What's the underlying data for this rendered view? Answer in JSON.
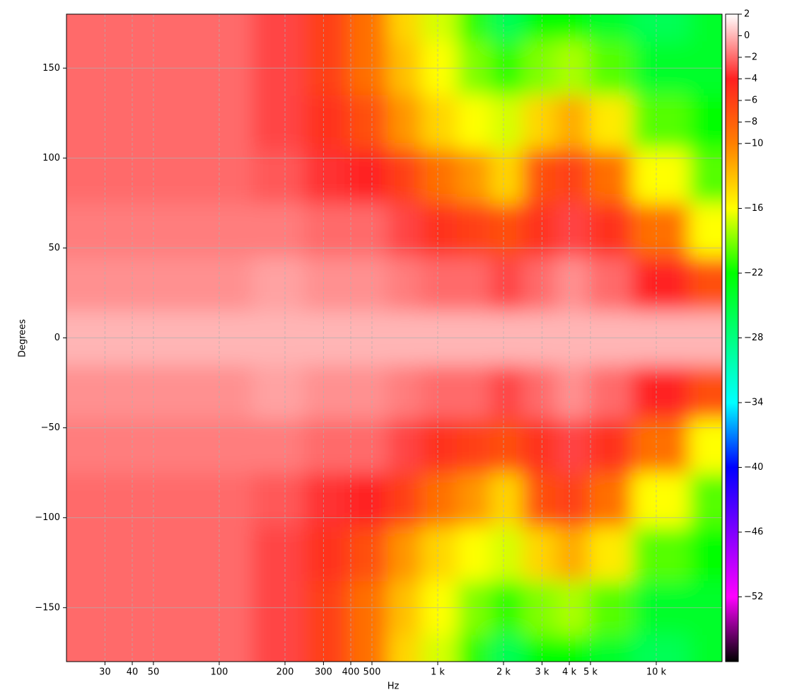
{
  "chart_data": {
    "type": "heatmap",
    "xlabel": "Hz",
    "ylabel": "Degrees",
    "x": [
      20,
      50,
      100,
      200,
      300,
      500,
      700,
      1000,
      1500,
      2000,
      3000,
      4000,
      6000,
      10000,
      20000
    ],
    "y": [
      -180,
      -150,
      -120,
      -90,
      -60,
      -30,
      0,
      30,
      60,
      90,
      120,
      150,
      180
    ],
    "values": [
      [
        -2,
        -2,
        -2,
        -3,
        -6,
        -9,
        -14,
        -17,
        -21,
        -26,
        -22,
        -22,
        -24,
        -26,
        -24
      ],
      [
        -2,
        -2,
        -2,
        -3,
        -6,
        -9,
        -13,
        -16,
        -19,
        -21,
        -19,
        -18,
        -20,
        -24,
        -24
      ],
      [
        -2,
        -2,
        -2,
        -3,
        -5,
        -7,
        -11,
        -14,
        -16,
        -17,
        -14,
        -12,
        -15,
        -20,
        -22
      ],
      [
        -2,
        -2,
        -2,
        -2.5,
        -3.5,
        -4,
        -6,
        -9,
        -11,
        -14,
        -7,
        -6,
        -9,
        -16,
        -20
      ],
      [
        -1.5,
        -1.5,
        -1.5,
        -1.5,
        -2,
        -2,
        -3,
        -5,
        -6,
        -7,
        -5,
        -3,
        -5,
        -9,
        -16
      ],
      [
        -1,
        -1,
        -1,
        -0.5,
        -1,
        -1,
        -1.5,
        -2,
        -2,
        -3,
        -2,
        -1,
        -2,
        -4,
        -7
      ],
      [
        0,
        0,
        0,
        0,
        0,
        0,
        0,
        0,
        0,
        0,
        0,
        0,
        0,
        0,
        0
      ],
      [
        -1,
        -1,
        -1,
        -0.5,
        -1,
        -1,
        -1.5,
        -2,
        -2,
        -3,
        -2,
        -1,
        -2,
        -4,
        -7
      ],
      [
        -1.5,
        -1.5,
        -1.5,
        -1.5,
        -2,
        -2,
        -3,
        -5,
        -6,
        -7,
        -5,
        -3,
        -5,
        -9,
        -16
      ],
      [
        -2,
        -2,
        -2,
        -2.5,
        -3.5,
        -4,
        -6,
        -9,
        -11,
        -14,
        -7,
        -6,
        -9,
        -16,
        -20
      ],
      [
        -2,
        -2,
        -2,
        -3,
        -5,
        -7,
        -11,
        -14,
        -16,
        -17,
        -14,
        -12,
        -15,
        -20,
        -22
      ],
      [
        -2,
        -2,
        -2,
        -3,
        -6,
        -9,
        -13,
        -16,
        -19,
        -21,
        -19,
        -18,
        -20,
        -24,
        -24
      ],
      [
        -2,
        -2,
        -2,
        -3,
        -6,
        -9,
        -14,
        -17,
        -21,
        -26,
        -22,
        -22,
        -24,
        -26,
        -24
      ]
    ],
    "xscale": "log",
    "xlim": [
      20,
      20000
    ],
    "xticks": [
      30,
      40,
      50,
      100,
      200,
      300,
      400,
      500,
      {
        "value": 1000,
        "label": "1 k"
      },
      {
        "value": 2000,
        "label": "2 k"
      },
      {
        "value": 3000,
        "label": "3 k"
      },
      {
        "value": 4000,
        "label": "4 k"
      },
      {
        "value": 5000,
        "label": "5 k"
      },
      {
        "value": 10000,
        "label": "10 k"
      }
    ],
    "ylim": [
      -180,
      180
    ],
    "yticks": [
      {
        "value": -150,
        "label": "−150"
      },
      {
        "value": -100,
        "label": "−100"
      },
      {
        "value": -50,
        "label": "−50"
      },
      0,
      50,
      100,
      150
    ],
    "grid": true,
    "clim": [
      -58,
      2
    ],
    "colormap": [
      "#000000",
      "#ff00ff",
      "#8000ff",
      "#0000ff",
      "#00ffff",
      "#00ff80",
      "#00ff00",
      "#ffff00",
      "#ff8000",
      "#ff2020",
      "#ffffff"
    ],
    "colorbar_ticks": [
      2,
      0,
      {
        "value": -2,
        "label": "−2"
      },
      {
        "value": -4,
        "label": "−4"
      },
      {
        "value": -6,
        "label": "−6"
      },
      {
        "value": -8,
        "label": "−8"
      },
      {
        "value": -10,
        "label": "−10"
      },
      {
        "value": -16,
        "label": "−16"
      },
      {
        "value": -22,
        "label": "−22"
      },
      {
        "value": -28,
        "label": "−28"
      },
      {
        "value": -34,
        "label": "−34"
      },
      {
        "value": -40,
        "label": "−40"
      },
      {
        "value": -46,
        "label": "−46"
      },
      {
        "value": -52,
        "label": "−52"
      }
    ]
  }
}
